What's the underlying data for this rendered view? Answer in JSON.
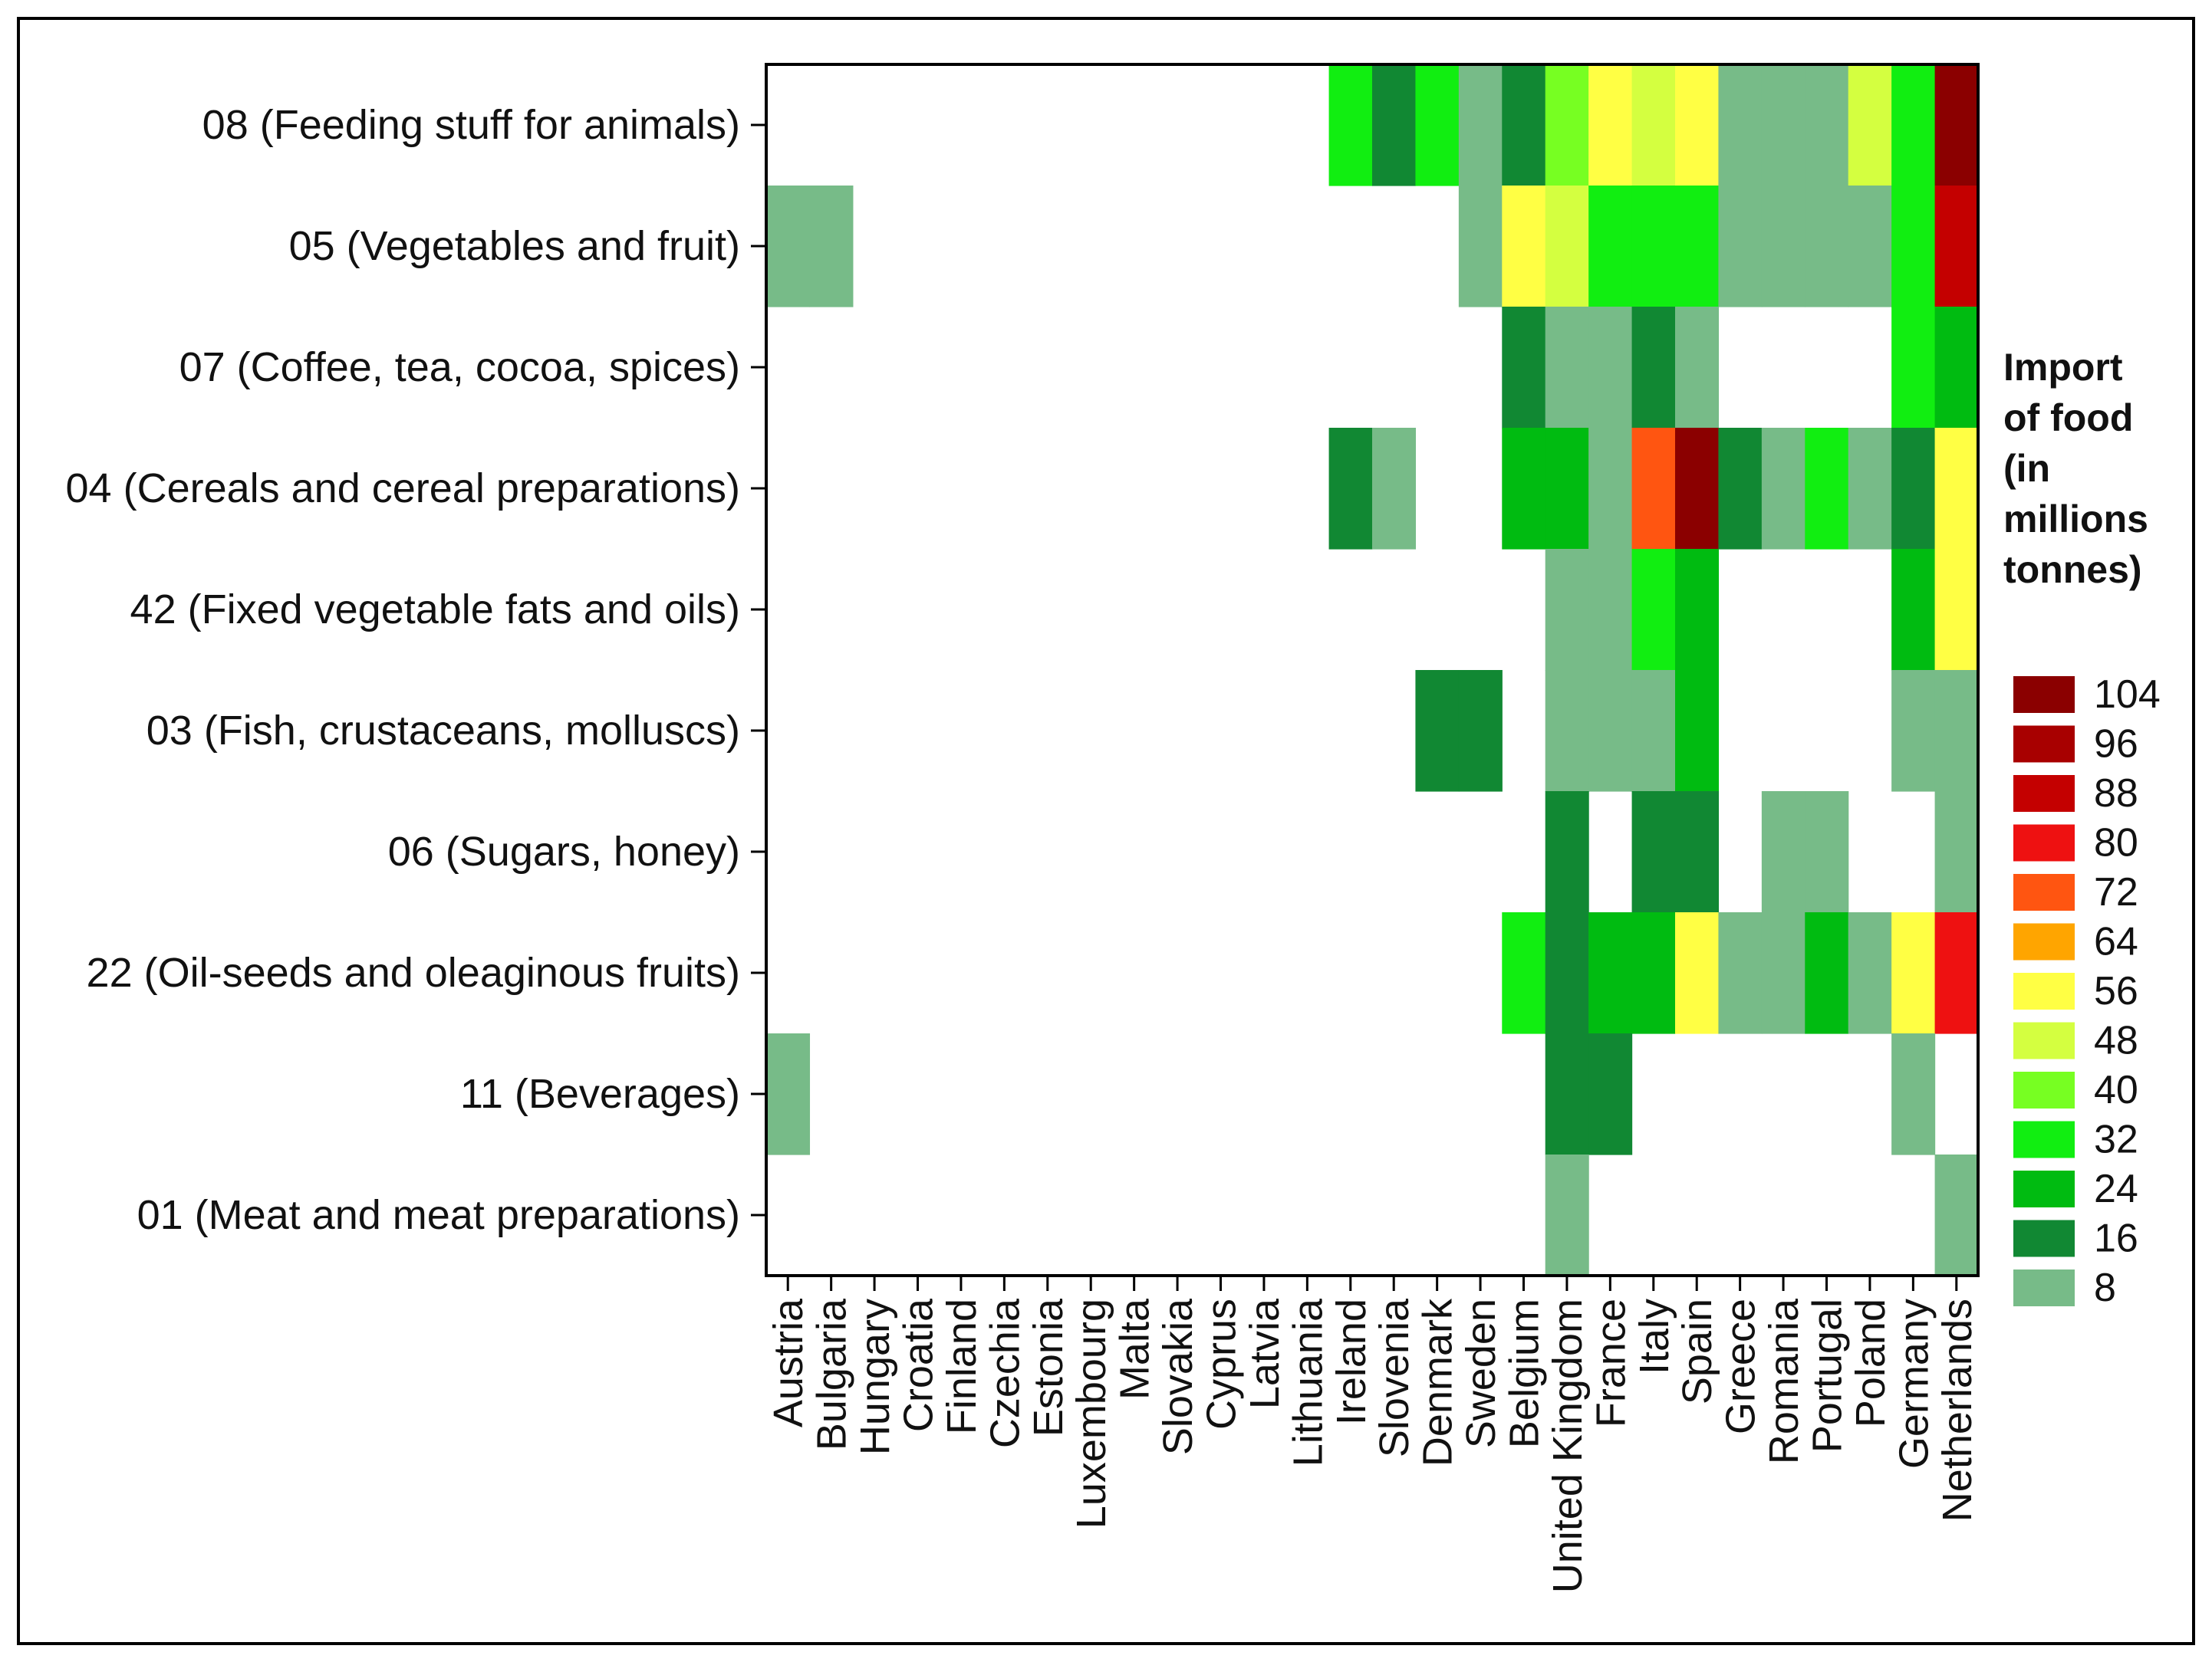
{
  "chart_data": {
    "type": "heatmap",
    "title": "",
    "xlabel": "",
    "ylabel": "",
    "rows": [
      "08 (Feeding stuff for animals)",
      "05 (Vegetables and fruit)",
      "07 (Coffee, tea, cocoa, spices)",
      "04 (Cereals and cereal preparations)",
      "42 (Fixed vegetable fats and oils)",
      "03 (Fish, crustaceans, molluscs)",
      "06 (Sugars, honey)",
      "22 (Oil-seeds and oleaginous fruits)",
      "11 (Beverages)",
      "01 (Meat and meat preparations)"
    ],
    "columns": [
      "Austria",
      "Bulgaria",
      "Hungary",
      "Croatia",
      "Finland",
      "Czechia",
      "Estonia",
      "Luxembourg",
      "Malta",
      "Slovakia",
      "Cyprus",
      "Latvia",
      "Lithuania",
      "Ireland",
      "Slovenia",
      "Denmark",
      "Sweden",
      "Belgium",
      "United Kingdom",
      "France",
      "Italy",
      "Spain",
      "Greece",
      "Romania",
      "Portugal",
      "Poland",
      "Germany",
      "Netherlands"
    ],
    "values": [
      [
        null,
        null,
        null,
        null,
        null,
        null,
        null,
        null,
        null,
        null,
        null,
        null,
        null,
        32,
        16,
        32,
        8,
        16,
        40,
        56,
        48,
        56,
        8,
        8,
        8,
        48,
        32,
        104
      ],
      [
        8,
        8,
        null,
        null,
        null,
        null,
        null,
        null,
        null,
        null,
        null,
        null,
        null,
        null,
        null,
        null,
        8,
        56,
        48,
        32,
        32,
        32,
        8,
        8,
        8,
        8,
        32,
        88
      ],
      [
        null,
        null,
        null,
        null,
        null,
        null,
        null,
        null,
        null,
        null,
        null,
        null,
        null,
        null,
        null,
        null,
        null,
        16,
        8,
        8,
        16,
        8,
        null,
        null,
        null,
        null,
        32,
        24
      ],
      [
        null,
        null,
        null,
        null,
        null,
        null,
        null,
        null,
        null,
        null,
        null,
        null,
        null,
        16,
        8,
        null,
        null,
        24,
        24,
        8,
        72,
        104,
        16,
        8,
        32,
        8,
        16,
        56
      ],
      [
        null,
        null,
        null,
        null,
        null,
        null,
        null,
        null,
        null,
        null,
        null,
        null,
        null,
        null,
        null,
        null,
        null,
        null,
        8,
        8,
        32,
        24,
        null,
        null,
        null,
        null,
        24,
        56
      ],
      [
        null,
        null,
        null,
        null,
        null,
        null,
        null,
        null,
        null,
        null,
        null,
        null,
        null,
        null,
        null,
        16,
        16,
        null,
        8,
        8,
        8,
        24,
        null,
        null,
        null,
        null,
        8,
        8
      ],
      [
        null,
        null,
        null,
        null,
        null,
        null,
        null,
        null,
        null,
        null,
        null,
        null,
        null,
        null,
        null,
        null,
        null,
        null,
        16,
        null,
        16,
        16,
        null,
        8,
        8,
        null,
        null,
        8
      ],
      [
        null,
        null,
        null,
        null,
        null,
        null,
        null,
        null,
        null,
        null,
        null,
        null,
        null,
        null,
        null,
        null,
        null,
        32,
        16,
        24,
        24,
        56,
        8,
        8,
        24,
        8,
        56,
        80
      ],
      [
        8,
        null,
        null,
        null,
        null,
        null,
        null,
        null,
        null,
        null,
        null,
        null,
        null,
        null,
        null,
        null,
        null,
        null,
        16,
        16,
        null,
        null,
        null,
        null,
        null,
        null,
        8,
        null
      ],
      [
        null,
        null,
        null,
        null,
        null,
        null,
        null,
        null,
        null,
        null,
        null,
        null,
        null,
        null,
        null,
        null,
        null,
        null,
        8,
        null,
        null,
        null,
        null,
        null,
        null,
        null,
        null,
        8
      ]
    ],
    "legend": {
      "title_lines": [
        "Import",
        "of food",
        "(in",
        "millions",
        "tonnes)"
      ],
      "position": "right",
      "levels": [
        104,
        96,
        88,
        80,
        72,
        64,
        56,
        48,
        40,
        32,
        24,
        16,
        8
      ],
      "colors": {
        "104": "#8B0000",
        "96": "#A80000",
        "88": "#C40000",
        "80": "#EE1111",
        "72": "#FF5511",
        "64": "#FFA500",
        "56": "#FFFF44",
        "48": "#D4FF40",
        "40": "#77FF22",
        "32": "#11EE11",
        "24": "#00BB11",
        "16": "#118833",
        "8": "#77BB88"
      }
    }
  }
}
